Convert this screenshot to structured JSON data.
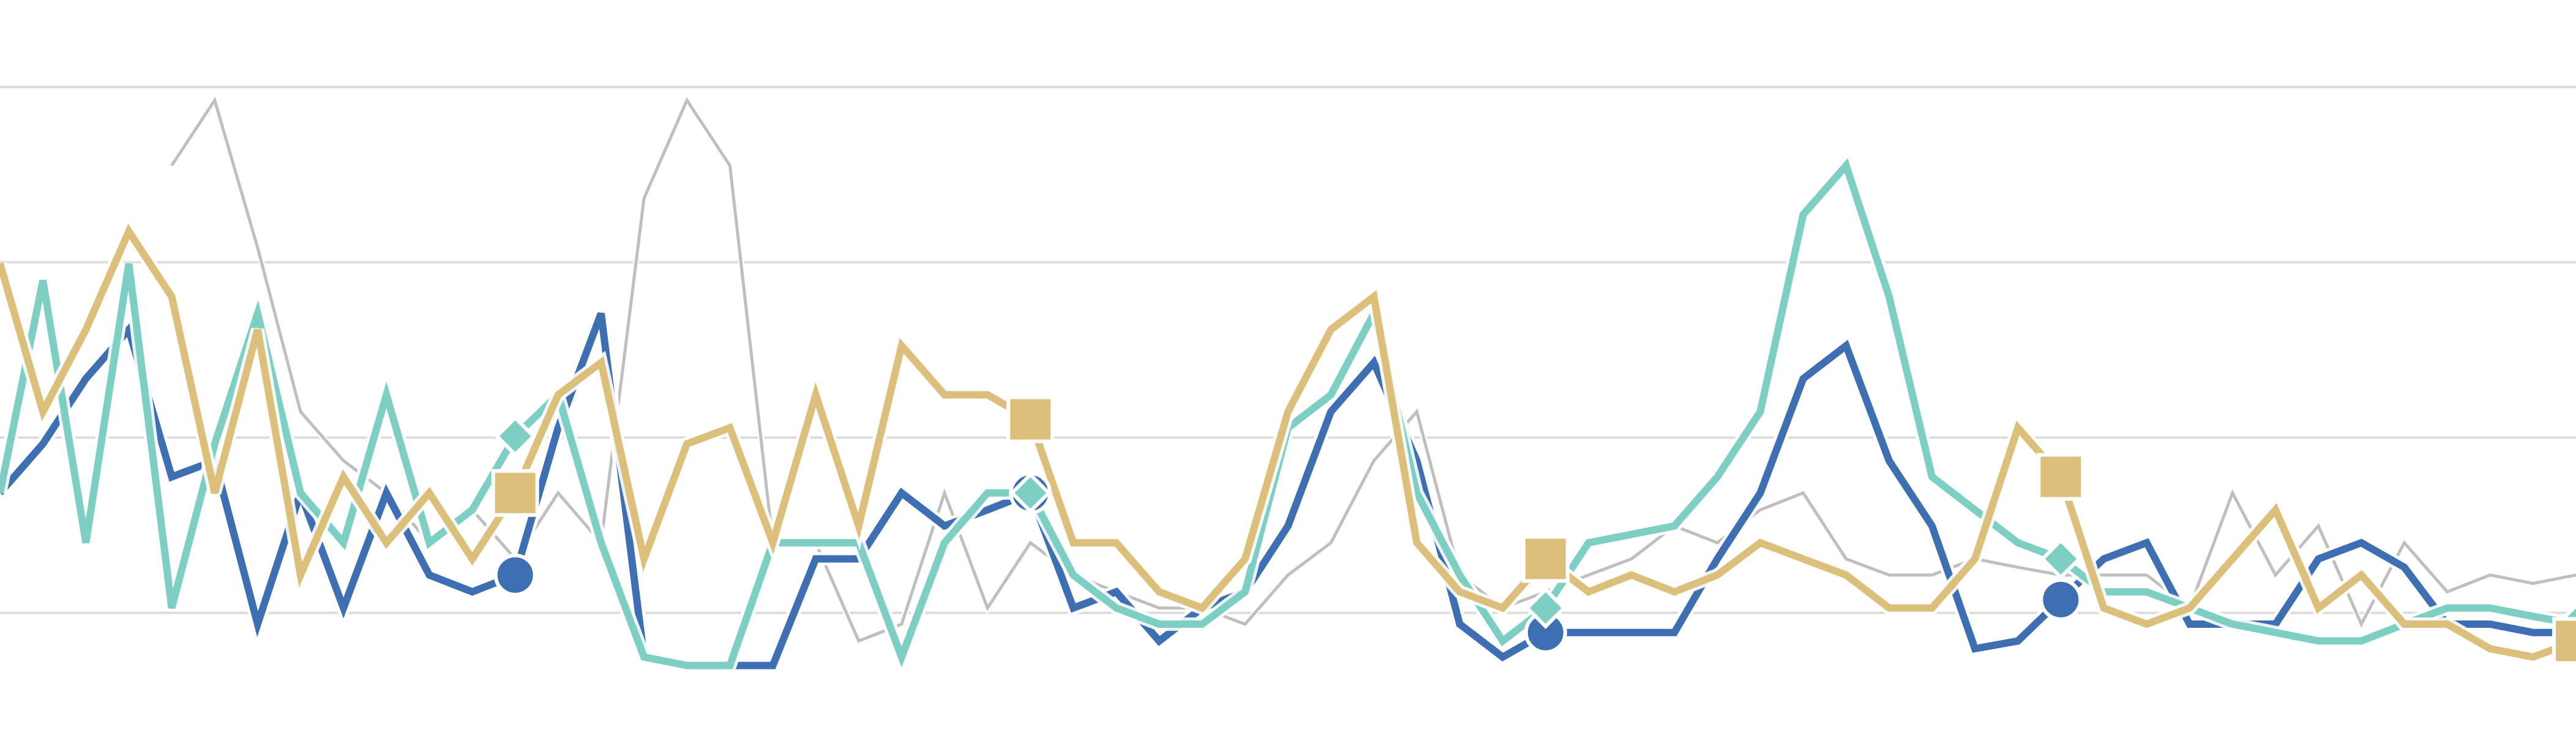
{
  "chart_data": {
    "type": "line",
    "categories": [
      null,
      null,
      null,
      null,
      null,
      null,
      null,
      null,
      null,
      null,
      null,
      null,
      null,
      null,
      null,
      null,
      null,
      null,
      null,
      null,
      null,
      null,
      null,
      null,
      null,
      null,
      null,
      null,
      null,
      null,
      null,
      null,
      null,
      null,
      null,
      null,
      null,
      null,
      null,
      null,
      null,
      null,
      null,
      null,
      null,
      null,
      null,
      null,
      null,
      null,
      null,
      null,
      null,
      null,
      null,
      null,
      null,
      null,
      null,
      null,
      null
    ],
    "ylim": [
      8.3,
      112.4
    ],
    "yticks": [
      25,
      50,
      75,
      100
    ],
    "grid": true,
    "series": [
      {
        "color": "#b8b8b8",
        "width": "thin",
        "marker": null,
        "values": [
          null,
          null,
          null,
          null,
          88.8,
          98.1,
          77.1,
          53.7,
          46.7,
          42.1,
          35.0,
          39.7,
          32.7,
          42.1,
          35.0,
          84.1,
          98.1,
          88.8,
          35.0,
          35.0,
          21.0,
          23.4,
          42.1,
          25.7,
          35.0,
          30.4,
          28.0,
          25.7,
          25.7,
          23.4,
          30.4,
          35.0,
          46.7,
          53.7,
          30.4,
          25.7,
          28.0,
          30.4,
          32.7,
          37.4,
          35.0,
          39.7,
          42.1,
          32.7,
          30.4,
          30.4,
          32.7,
          31.5,
          30.4,
          30.4,
          30.4,
          25.7,
          42.1,
          30.4,
          37.4,
          23.4,
          35.0,
          28.0,
          30.4,
          29.2,
          30.4
        ]
      },
      {
        "color": "#3e6fb3",
        "width": "thick",
        "marker": "circle",
        "values": [
          42.1,
          49.1,
          58.4,
          65.4,
          44.4,
          46.7,
          23.4,
          42.1,
          25.7,
          42.1,
          30.4,
          28.0,
          30.4,
          51.4,
          67.7,
          18.7,
          17.5,
          17.5,
          17.5,
          32.7,
          32.7,
          42.1,
          37.4,
          39.7,
          42.1,
          25.7,
          28.0,
          21.0,
          25.7,
          28.0,
          37.4,
          53.7,
          60.7,
          46.7,
          23.4,
          18.7,
          22.2,
          22.2,
          22.2,
          22.2,
          32.7,
          42.1,
          58.4,
          63.1,
          46.7,
          37.4,
          19.9,
          21.0,
          26.9,
          32.7,
          35.0,
          23.4,
          23.4,
          23.4,
          32.7,
          35.0,
          31.5,
          23.4,
          23.4,
          22.2,
          22.2
        ]
      },
      {
        "color": "#7dcfc3",
        "width": "thick",
        "marker": "diamond",
        "values": [
          42.1,
          72.4,
          35.0,
          74.8,
          25.7,
          49.1,
          67.7,
          42.1,
          35.0,
          56.1,
          35.0,
          39.7,
          50.2,
          56.1,
          35.0,
          18.7,
          17.5,
          17.5,
          35.0,
          35.0,
          35.0,
          18.7,
          35.0,
          42.1,
          42.1,
          30.4,
          25.7,
          23.4,
          23.4,
          28.0,
          51.4,
          56.1,
          67.7,
          42.1,
          30.4,
          21.0,
          25.7,
          35.0,
          36.2,
          37.4,
          44.4,
          53.7,
          81.8,
          88.8,
          70.1,
          44.4,
          39.7,
          35.0,
          32.7,
          28.0,
          28.0,
          25.7,
          23.4,
          22.2,
          21.0,
          21.0,
          23.4,
          25.7,
          25.7,
          24.5,
          23.4
        ]
      },
      {
        "color": "#dcbf7b",
        "width": "thick",
        "marker": "square",
        "values": [
          74.8,
          53.7,
          65.4,
          79.4,
          70.1,
          42.1,
          65.4,
          30.4,
          44.4,
          35.0,
          42.1,
          32.7,
          42.1,
          56.1,
          60.7,
          32.7,
          49.1,
          51.4,
          35.0,
          56.1,
          37.4,
          63.1,
          56.1,
          56.1,
          52.6,
          35.0,
          35.0,
          28.0,
          25.7,
          32.7,
          53.7,
          65.4,
          70.1,
          35.0,
          28.0,
          25.7,
          32.7,
          28.0,
          30.4,
          28.0,
          30.4,
          35.0,
          32.7,
          30.4,
          25.7,
          25.7,
          32.7,
          51.4,
          44.4,
          25.7,
          23.4,
          25.7,
          32.7,
          39.7,
          25.7,
          30.4,
          23.4,
          23.4,
          19.9,
          18.7,
          21.0
        ]
      }
    ]
  }
}
